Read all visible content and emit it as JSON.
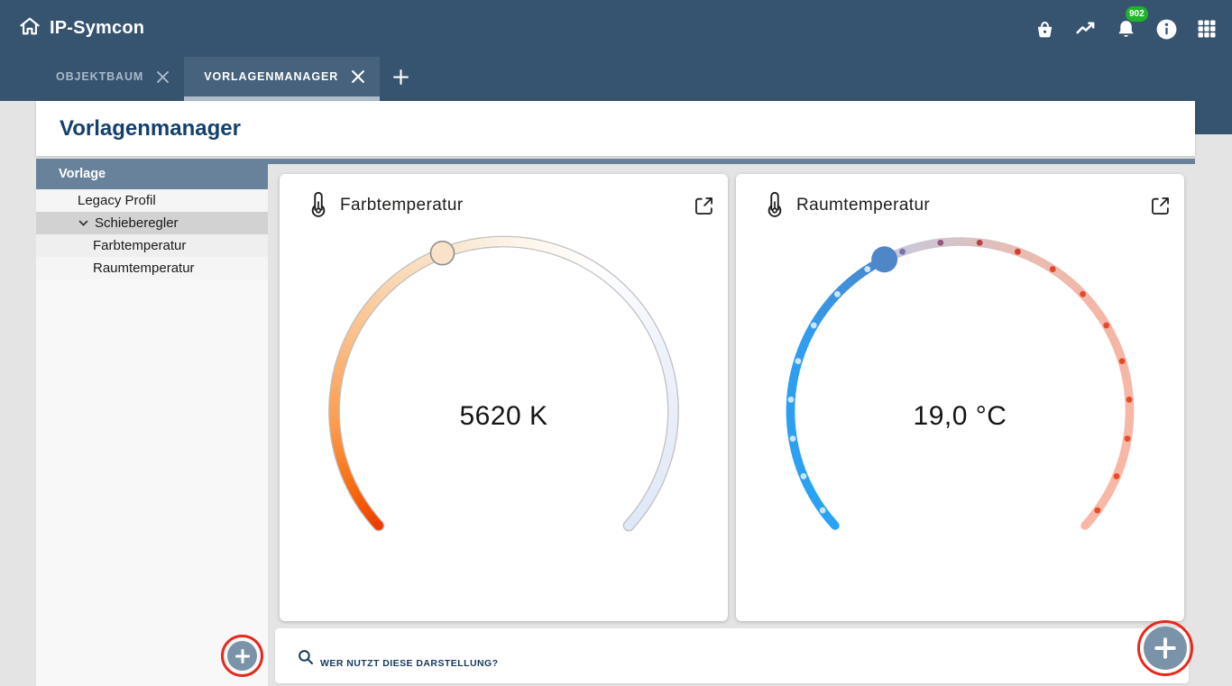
{
  "brand": {
    "name": "IP-Symcon"
  },
  "topbar": {
    "icons": [
      {
        "name": "basket-icon"
      },
      {
        "name": "trend-icon"
      },
      {
        "name": "bell-icon",
        "badge": "902"
      },
      {
        "name": "info-icon"
      },
      {
        "name": "apps-grid-icon"
      }
    ],
    "notification_badge": "902"
  },
  "tabs": {
    "items": [
      {
        "label": "OBJEKTBAUM",
        "active": false
      },
      {
        "label": "VORLAGENMANAGER",
        "active": true
      }
    ]
  },
  "page": {
    "title": "Vorlagenmanager"
  },
  "sidebar": {
    "header": "Vorlage",
    "items": [
      {
        "label": "Legacy Profil"
      },
      {
        "label": "Schieberegler",
        "selected": true,
        "expanded": true
      },
      {
        "label": "Farbtemperatur"
      },
      {
        "label": "Raumtemperatur"
      }
    ]
  },
  "cards": [
    {
      "title": "Farbtemperatur",
      "value": "5620 K",
      "gauge": {
        "kind": "color-temperature-slider",
        "fraction": 0.42,
        "outline": "#bfbfbf",
        "stroke_width": 10.2,
        "handle": {
          "fill": "#f9e2c9",
          "stroke": "#8f8f8f",
          "r": 13
        },
        "stops": [
          [
            0.0,
            "#ee3b00"
          ],
          [
            0.06,
            "#f96a0e"
          ],
          [
            0.14,
            "#fb9a4a"
          ],
          [
            0.25,
            "#fbbc82"
          ],
          [
            0.35,
            "#fad7b2"
          ],
          [
            0.42,
            "#f9e4cb"
          ],
          [
            0.52,
            "#fdf4ea"
          ],
          [
            0.62,
            "#ffffff"
          ],
          [
            0.78,
            "#edf1fa"
          ],
          [
            1.0,
            "#dfe8f7"
          ]
        ]
      }
    },
    {
      "title": "Raumtemperatur",
      "value": "19,0 °C",
      "gauge": {
        "kind": "temperature-slider",
        "fraction": 0.4,
        "stroke_width": 9.6,
        "handle": {
          "fill": "#4e86c8",
          "stroke": "none",
          "r": 14.5
        },
        "fill_stops": [
          [
            0.0,
            "#29a3f5"
          ],
          [
            0.25,
            "#2f9df0"
          ],
          [
            0.34,
            "#4090dc"
          ],
          [
            0.4,
            "#4e86c8"
          ]
        ],
        "track_stops": [
          [
            0.4,
            "#c6c9dd"
          ],
          [
            0.48,
            "#d2c4cd"
          ],
          [
            0.58,
            "#e8bcb2"
          ],
          [
            0.72,
            "#f6b6a5"
          ],
          [
            1.0,
            "#f9b8a7"
          ]
        ],
        "ticks": 20,
        "tick_light": "#c9e6fb",
        "tick_stops": [
          [
            0.4,
            "#6b7cc0"
          ],
          [
            0.45,
            "#8a68a0"
          ],
          [
            0.5,
            "#a04a55"
          ],
          [
            0.55,
            "#c93b30"
          ],
          [
            0.63,
            "#e5482c"
          ],
          [
            1.0,
            "#ee4a24"
          ]
        ]
      }
    }
  ],
  "footer": {
    "search_placeholder": "WER NUTZT DIESE DARSTELLUNG?"
  },
  "colors": {
    "topbar": "#36536f",
    "active_tab": "#47627c",
    "tab_underline": "#aebdc9",
    "accent_navy": "#15406b",
    "slate_header": "#68829b",
    "plus_button": "#7b93a9",
    "annotation_red": "#e7291d",
    "badge_green": "#22b32c",
    "page_bg": "#e4e4e4"
  }
}
